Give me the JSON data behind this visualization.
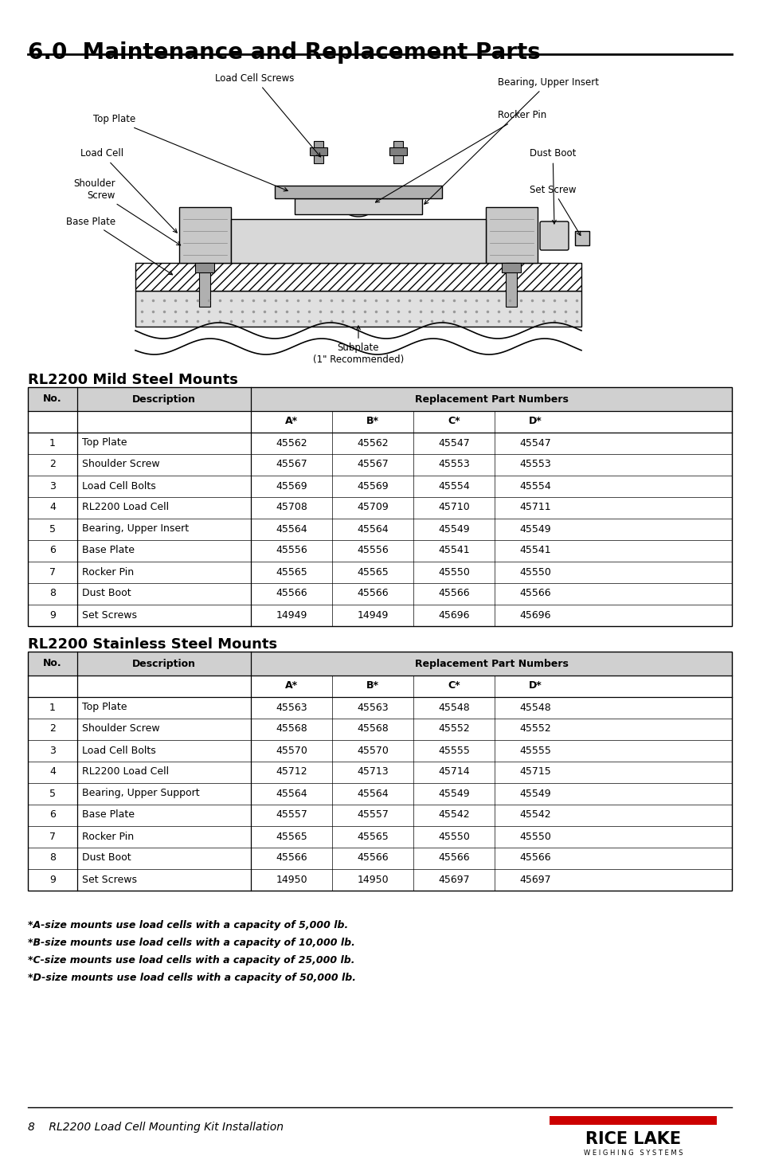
{
  "title": "6.0  Maintenance and Replacement Parts",
  "section1_title": "RL2200 Mild Steel Mounts",
  "section2_title": "RL2200 Stainless Steel Mounts",
  "mild_steel_data": [
    [
      "1",
      "Top Plate",
      "45562",
      "45562",
      "45547",
      "45547"
    ],
    [
      "2",
      "Shoulder Screw",
      "45567",
      "45567",
      "45553",
      "45553"
    ],
    [
      "3",
      "Load Cell Bolts",
      "45569",
      "45569",
      "45554",
      "45554"
    ],
    [
      "4",
      "RL2200 Load Cell",
      "45708",
      "45709",
      "45710",
      "45711"
    ],
    [
      "5",
      "Bearing, Upper Insert",
      "45564",
      "45564",
      "45549",
      "45549"
    ],
    [
      "6",
      "Base Plate",
      "45556",
      "45556",
      "45541",
      "45541"
    ],
    [
      "7",
      "Rocker Pin",
      "45565",
      "45565",
      "45550",
      "45550"
    ],
    [
      "8",
      "Dust Boot",
      "45566",
      "45566",
      "45566",
      "45566"
    ],
    [
      "9",
      "Set Screws",
      "14949",
      "14949",
      "45696",
      "45696"
    ]
  ],
  "stainless_steel_data": [
    [
      "1",
      "Top Plate",
      "45563",
      "45563",
      "45548",
      "45548"
    ],
    [
      "2",
      "Shoulder Screw",
      "45568",
      "45568",
      "45552",
      "45552"
    ],
    [
      "3",
      "Load Cell Bolts",
      "45570",
      "45570",
      "45555",
      "45555"
    ],
    [
      "4",
      "RL2200 Load Cell",
      "45712",
      "45713",
      "45714",
      "45715"
    ],
    [
      "5",
      "Bearing, Upper Support",
      "45564",
      "45564",
      "45549",
      "45549"
    ],
    [
      "6",
      "Base Plate",
      "45557",
      "45557",
      "45542",
      "45542"
    ],
    [
      "7",
      "Rocker Pin",
      "45565",
      "45565",
      "45550",
      "45550"
    ],
    [
      "8",
      "Dust Boot",
      "45566",
      "45566",
      "45566",
      "45566"
    ],
    [
      "9",
      "Set Screws",
      "14950",
      "14950",
      "45697",
      "45697"
    ]
  ],
  "footnotes": [
    "*A-size mounts use load cells with a capacity of 5,000 lb.",
    "*B-size mounts use load cells with a capacity of 10,000 lb.",
    "*C-size mounts use load cells with a capacity of 25,000 lb.",
    "*D-size mounts use load cells with a capacity of 50,000 lb."
  ],
  "footer_left": "8    RL2200 Load Cell Mounting Kit Installation",
  "header_color": "#d0d0d0",
  "bg_color": "#ffffff",
  "title_color": "#000000",
  "red_color": "#cc0000"
}
